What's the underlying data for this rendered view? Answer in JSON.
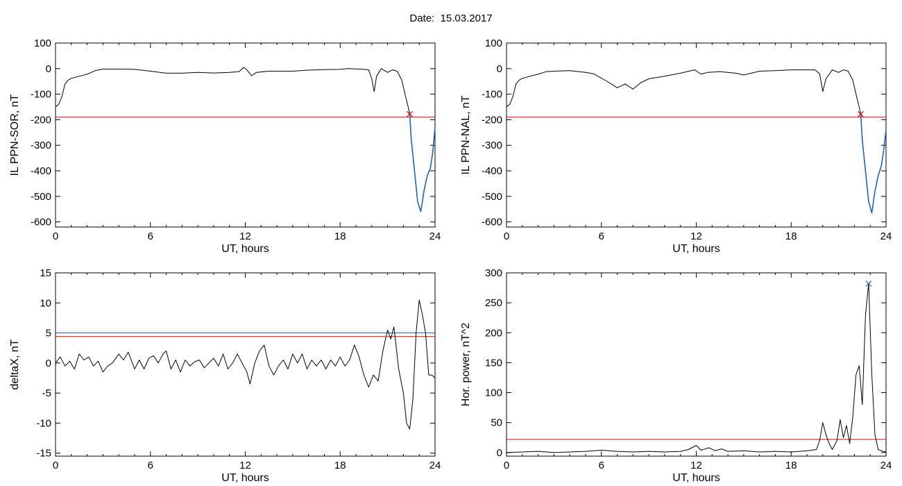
{
  "header": {
    "date_label": "Date:",
    "date_value": "15.03.2017"
  },
  "colors": {
    "axis": "#000000",
    "trace": "#000000",
    "threshold": "#e00000",
    "highlight": "#1f5fd0",
    "secondary": "#20a040"
  },
  "chart_data": [
    {
      "id": "sor",
      "type": "line",
      "ylabel": "IL PPN-SOR, nT",
      "xlabel": "UT, hours",
      "xlim": [
        0,
        24
      ],
      "xticks": [
        0,
        6,
        12,
        18,
        24
      ],
      "ylim": [
        -620,
        100
      ],
      "yticks": [
        100,
        0,
        -100,
        -200,
        -300,
        -400,
        -500,
        -600
      ],
      "threshold": -190,
      "marker": {
        "x": 22.4,
        "y": -178
      },
      "series": [
        {
          "color": "trace",
          "points": [
            [
              0,
              -150
            ],
            [
              0.2,
              -140
            ],
            [
              0.4,
              -110
            ],
            [
              0.6,
              -60
            ],
            [
              0.8,
              -45
            ],
            [
              1.0,
              -38
            ],
            [
              1.5,
              -30
            ],
            [
              2.0,
              -22
            ],
            [
              2.5,
              -8
            ],
            [
              3.0,
              -2
            ],
            [
              4.0,
              -2
            ],
            [
              5.0,
              -3
            ],
            [
              6.0,
              -10
            ],
            [
              7.0,
              -18
            ],
            [
              8.0,
              -18
            ],
            [
              9.0,
              -15
            ],
            [
              10.0,
              -17
            ],
            [
              11.0,
              -15
            ],
            [
              11.6,
              -12
            ],
            [
              11.9,
              5
            ],
            [
              12.1,
              -5
            ],
            [
              12.4,
              -28
            ],
            [
              12.7,
              -15
            ],
            [
              13.5,
              -10
            ],
            [
              15.0,
              -10
            ],
            [
              16.0,
              -6
            ],
            [
              17.0,
              -4
            ],
            [
              18.0,
              -3
            ],
            [
              18.5,
              0
            ],
            [
              19.5,
              -3
            ],
            [
              19.8,
              -5
            ],
            [
              20.0,
              -40
            ],
            [
              20.15,
              -90
            ],
            [
              20.3,
              -30
            ],
            [
              20.6,
              0
            ],
            [
              21.0,
              -15
            ],
            [
              21.3,
              -5
            ],
            [
              21.6,
              -10
            ],
            [
              21.9,
              -45
            ],
            [
              22.1,
              -100
            ],
            [
              22.3,
              -150
            ],
            [
              22.4,
              -178
            ]
          ]
        },
        {
          "color": "highlight",
          "points": [
            [
              22.4,
              -178
            ],
            [
              22.5,
              -280
            ],
            [
              22.7,
              -400
            ],
            [
              22.9,
              -520
            ],
            [
              23.1,
              -560
            ],
            [
              23.3,
              -480
            ],
            [
              23.5,
              -420
            ],
            [
              23.7,
              -390
            ],
            [
              23.85,
              -330
            ],
            [
              24.0,
              -230
            ]
          ]
        }
      ]
    },
    {
      "id": "nal",
      "type": "line",
      "ylabel": "IL PPN-NAL, nT",
      "xlabel": "UT, hours",
      "xlim": [
        0,
        24
      ],
      "xticks": [
        0,
        6,
        12,
        18,
        24
      ],
      "ylim": [
        -620,
        100
      ],
      "yticks": [
        100,
        0,
        -100,
        -200,
        -300,
        -400,
        -500,
        -600
      ],
      "threshold": -190,
      "marker": {
        "x": 22.4,
        "y": -178
      },
      "series": [
        {
          "color": "trace",
          "points": [
            [
              0,
              -150
            ],
            [
              0.2,
              -140
            ],
            [
              0.4,
              -110
            ],
            [
              0.6,
              -60
            ],
            [
              0.8,
              -45
            ],
            [
              1.0,
              -38
            ],
            [
              1.5,
              -30
            ],
            [
              2.0,
              -22
            ],
            [
              2.5,
              -12
            ],
            [
              3.0,
              -10
            ],
            [
              4.0,
              -8
            ],
            [
              5.0,
              -15
            ],
            [
              5.5,
              -20
            ],
            [
              6.5,
              -55
            ],
            [
              7.0,
              -75
            ],
            [
              7.5,
              -60
            ],
            [
              8.0,
              -80
            ],
            [
              8.5,
              -55
            ],
            [
              9.0,
              -40
            ],
            [
              10.0,
              -30
            ],
            [
              11.0,
              -18
            ],
            [
              11.9,
              -5
            ],
            [
              12.3,
              -22
            ],
            [
              12.7,
              -15
            ],
            [
              13.5,
              -12
            ],
            [
              14.5,
              -18
            ],
            [
              15.0,
              -25
            ],
            [
              16.0,
              -10
            ],
            [
              17.0,
              -8
            ],
            [
              18.0,
              -5
            ],
            [
              19.5,
              -5
            ],
            [
              19.8,
              -20
            ],
            [
              20.0,
              -90
            ],
            [
              20.2,
              -40
            ],
            [
              20.6,
              -5
            ],
            [
              21.0,
              -15
            ],
            [
              21.3,
              -5
            ],
            [
              21.6,
              -10
            ],
            [
              21.9,
              -45
            ],
            [
              22.1,
              -100
            ],
            [
              22.3,
              -150
            ],
            [
              22.4,
              -178
            ]
          ]
        },
        {
          "color": "highlight",
          "points": [
            [
              22.4,
              -178
            ],
            [
              22.5,
              -280
            ],
            [
              22.7,
              -400
            ],
            [
              22.9,
              -520
            ],
            [
              23.1,
              -565
            ],
            [
              23.3,
              -480
            ],
            [
              23.5,
              -420
            ],
            [
              23.7,
              -380
            ],
            [
              23.85,
              -320
            ],
            [
              24.0,
              -240
            ]
          ]
        }
      ]
    },
    {
      "id": "deltax",
      "type": "line",
      "ylabel": "deltaX, nT",
      "xlabel": "UT, hours",
      "xlim": [
        0,
        24
      ],
      "xticks": [
        0,
        6,
        12,
        18,
        24
      ],
      "ylim": [
        -15.5,
        15
      ],
      "yticks": [
        15,
        10,
        5,
        0,
        -5,
        -10,
        -15
      ],
      "threshold": 4.4,
      "threshold2": 5.0,
      "series": [
        {
          "color": "trace",
          "points": [
            [
              0,
              0
            ],
            [
              0.3,
              1
            ],
            [
              0.6,
              -0.5
            ],
            [
              0.9,
              0.3
            ],
            [
              1.2,
              -1
            ],
            [
              1.5,
              1.5
            ],
            [
              1.8,
              0.5
            ],
            [
              2.1,
              1
            ],
            [
              2.4,
              -0.5
            ],
            [
              2.7,
              0.3
            ],
            [
              3.0,
              -1.5
            ],
            [
              3.3,
              -0.5
            ],
            [
              3.6,
              0
            ],
            [
              4.0,
              1.5
            ],
            [
              4.3,
              0.5
            ],
            [
              4.6,
              1.8
            ],
            [
              5.0,
              -1
            ],
            [
              5.3,
              0.5
            ],
            [
              5.6,
              -1
            ],
            [
              5.9,
              0.8
            ],
            [
              6.2,
              1.2
            ],
            [
              6.5,
              0
            ],
            [
              6.8,
              1.5
            ],
            [
              7.0,
              2
            ],
            [
              7.3,
              -1
            ],
            [
              7.6,
              0.5
            ],
            [
              7.9,
              -1.5
            ],
            [
              8.2,
              0.5
            ],
            [
              8.5,
              -0.5
            ],
            [
              8.8,
              0.2
            ],
            [
              9.1,
              0.5
            ],
            [
              9.4,
              -0.8
            ],
            [
              9.7,
              0
            ],
            [
              10.0,
              0.8
            ],
            [
              10.3,
              -0.5
            ],
            [
              10.6,
              1.5
            ],
            [
              10.9,
              -1
            ],
            [
              11.2,
              0
            ],
            [
              11.5,
              1.5
            ],
            [
              11.8,
              0
            ],
            [
              12.1,
              -1.5
            ],
            [
              12.3,
              -3.5
            ],
            [
              12.6,
              0
            ],
            [
              12.9,
              2
            ],
            [
              13.2,
              3
            ],
            [
              13.5,
              -0.5
            ],
            [
              13.8,
              -2
            ],
            [
              14.1,
              -0.5
            ],
            [
              14.4,
              0.5
            ],
            [
              14.7,
              -1
            ],
            [
              15.0,
              1.5
            ],
            [
              15.3,
              0
            ],
            [
              15.6,
              1.5
            ],
            [
              15.9,
              -1
            ],
            [
              16.2,
              0.5
            ],
            [
              16.5,
              -0.5
            ],
            [
              16.8,
              0.5
            ],
            [
              17.1,
              -1
            ],
            [
              17.4,
              0.5
            ],
            [
              17.7,
              -0.5
            ],
            [
              18.0,
              1
            ],
            [
              18.3,
              -0.5
            ],
            [
              18.6,
              0.5
            ],
            [
              18.9,
              3
            ],
            [
              19.2,
              1
            ],
            [
              19.5,
              -2
            ],
            [
              19.8,
              -4
            ],
            [
              20.1,
              -2
            ],
            [
              20.4,
              -3
            ],
            [
              20.7,
              2
            ],
            [
              21.0,
              5.5
            ],
            [
              21.2,
              4
            ],
            [
              21.4,
              6
            ],
            [
              21.7,
              -1
            ],
            [
              22.0,
              -5
            ],
            [
              22.2,
              -10
            ],
            [
              22.4,
              -11
            ],
            [
              22.6,
              -6
            ],
            [
              22.8,
              5
            ],
            [
              23.0,
              10.5
            ],
            [
              23.2,
              8
            ],
            [
              23.4,
              5
            ],
            [
              23.6,
              -2
            ],
            [
              23.8,
              -2
            ],
            [
              24.0,
              -2.5
            ]
          ]
        }
      ]
    },
    {
      "id": "power",
      "type": "line",
      "ylabel": "Hor. power, nT^2",
      "xlabel": "UT, hours",
      "xlim": [
        0,
        24
      ],
      "xticks": [
        0,
        6,
        12,
        18,
        24
      ],
      "ylim": [
        -6,
        300
      ],
      "yticks": [
        300,
        250,
        200,
        150,
        100,
        50,
        0
      ],
      "threshold": 22,
      "marker": {
        "x": 22.9,
        "y": 282
      },
      "series": [
        {
          "color": "trace",
          "points": [
            [
              0,
              0
            ],
            [
              1.0,
              1
            ],
            [
              2.0,
              2
            ],
            [
              3.0,
              0
            ],
            [
              4.0,
              1
            ],
            [
              5.0,
              2
            ],
            [
              6.0,
              4
            ],
            [
              7.0,
              2
            ],
            [
              8.0,
              1
            ],
            [
              9.0,
              2
            ],
            [
              10.0,
              1
            ],
            [
              11.0,
              2
            ],
            [
              11.5,
              5
            ],
            [
              12.0,
              12
            ],
            [
              12.3,
              4
            ],
            [
              12.8,
              8
            ],
            [
              13.2,
              3
            ],
            [
              13.6,
              6
            ],
            [
              14.0,
              2
            ],
            [
              15.0,
              3
            ],
            [
              16.0,
              1
            ],
            [
              17.0,
              2
            ],
            [
              18.0,
              1
            ],
            [
              19.0,
              3
            ],
            [
              19.6,
              5
            ],
            [
              19.8,
              20
            ],
            [
              20.0,
              50
            ],
            [
              20.2,
              30
            ],
            [
              20.4,
              15
            ],
            [
              20.6,
              5
            ],
            [
              20.9,
              20
            ],
            [
              21.1,
              55
            ],
            [
              21.3,
              25
            ],
            [
              21.5,
              45
            ],
            [
              21.7,
              15
            ],
            [
              21.9,
              60
            ],
            [
              22.1,
              130
            ],
            [
              22.3,
              145
            ],
            [
              22.5,
              80
            ],
            [
              22.7,
              230
            ],
            [
              22.9,
              282
            ],
            [
              23.1,
              130
            ],
            [
              23.3,
              30
            ],
            [
              23.5,
              5
            ],
            [
              23.8,
              2
            ],
            [
              24.0,
              1
            ]
          ]
        }
      ]
    }
  ]
}
